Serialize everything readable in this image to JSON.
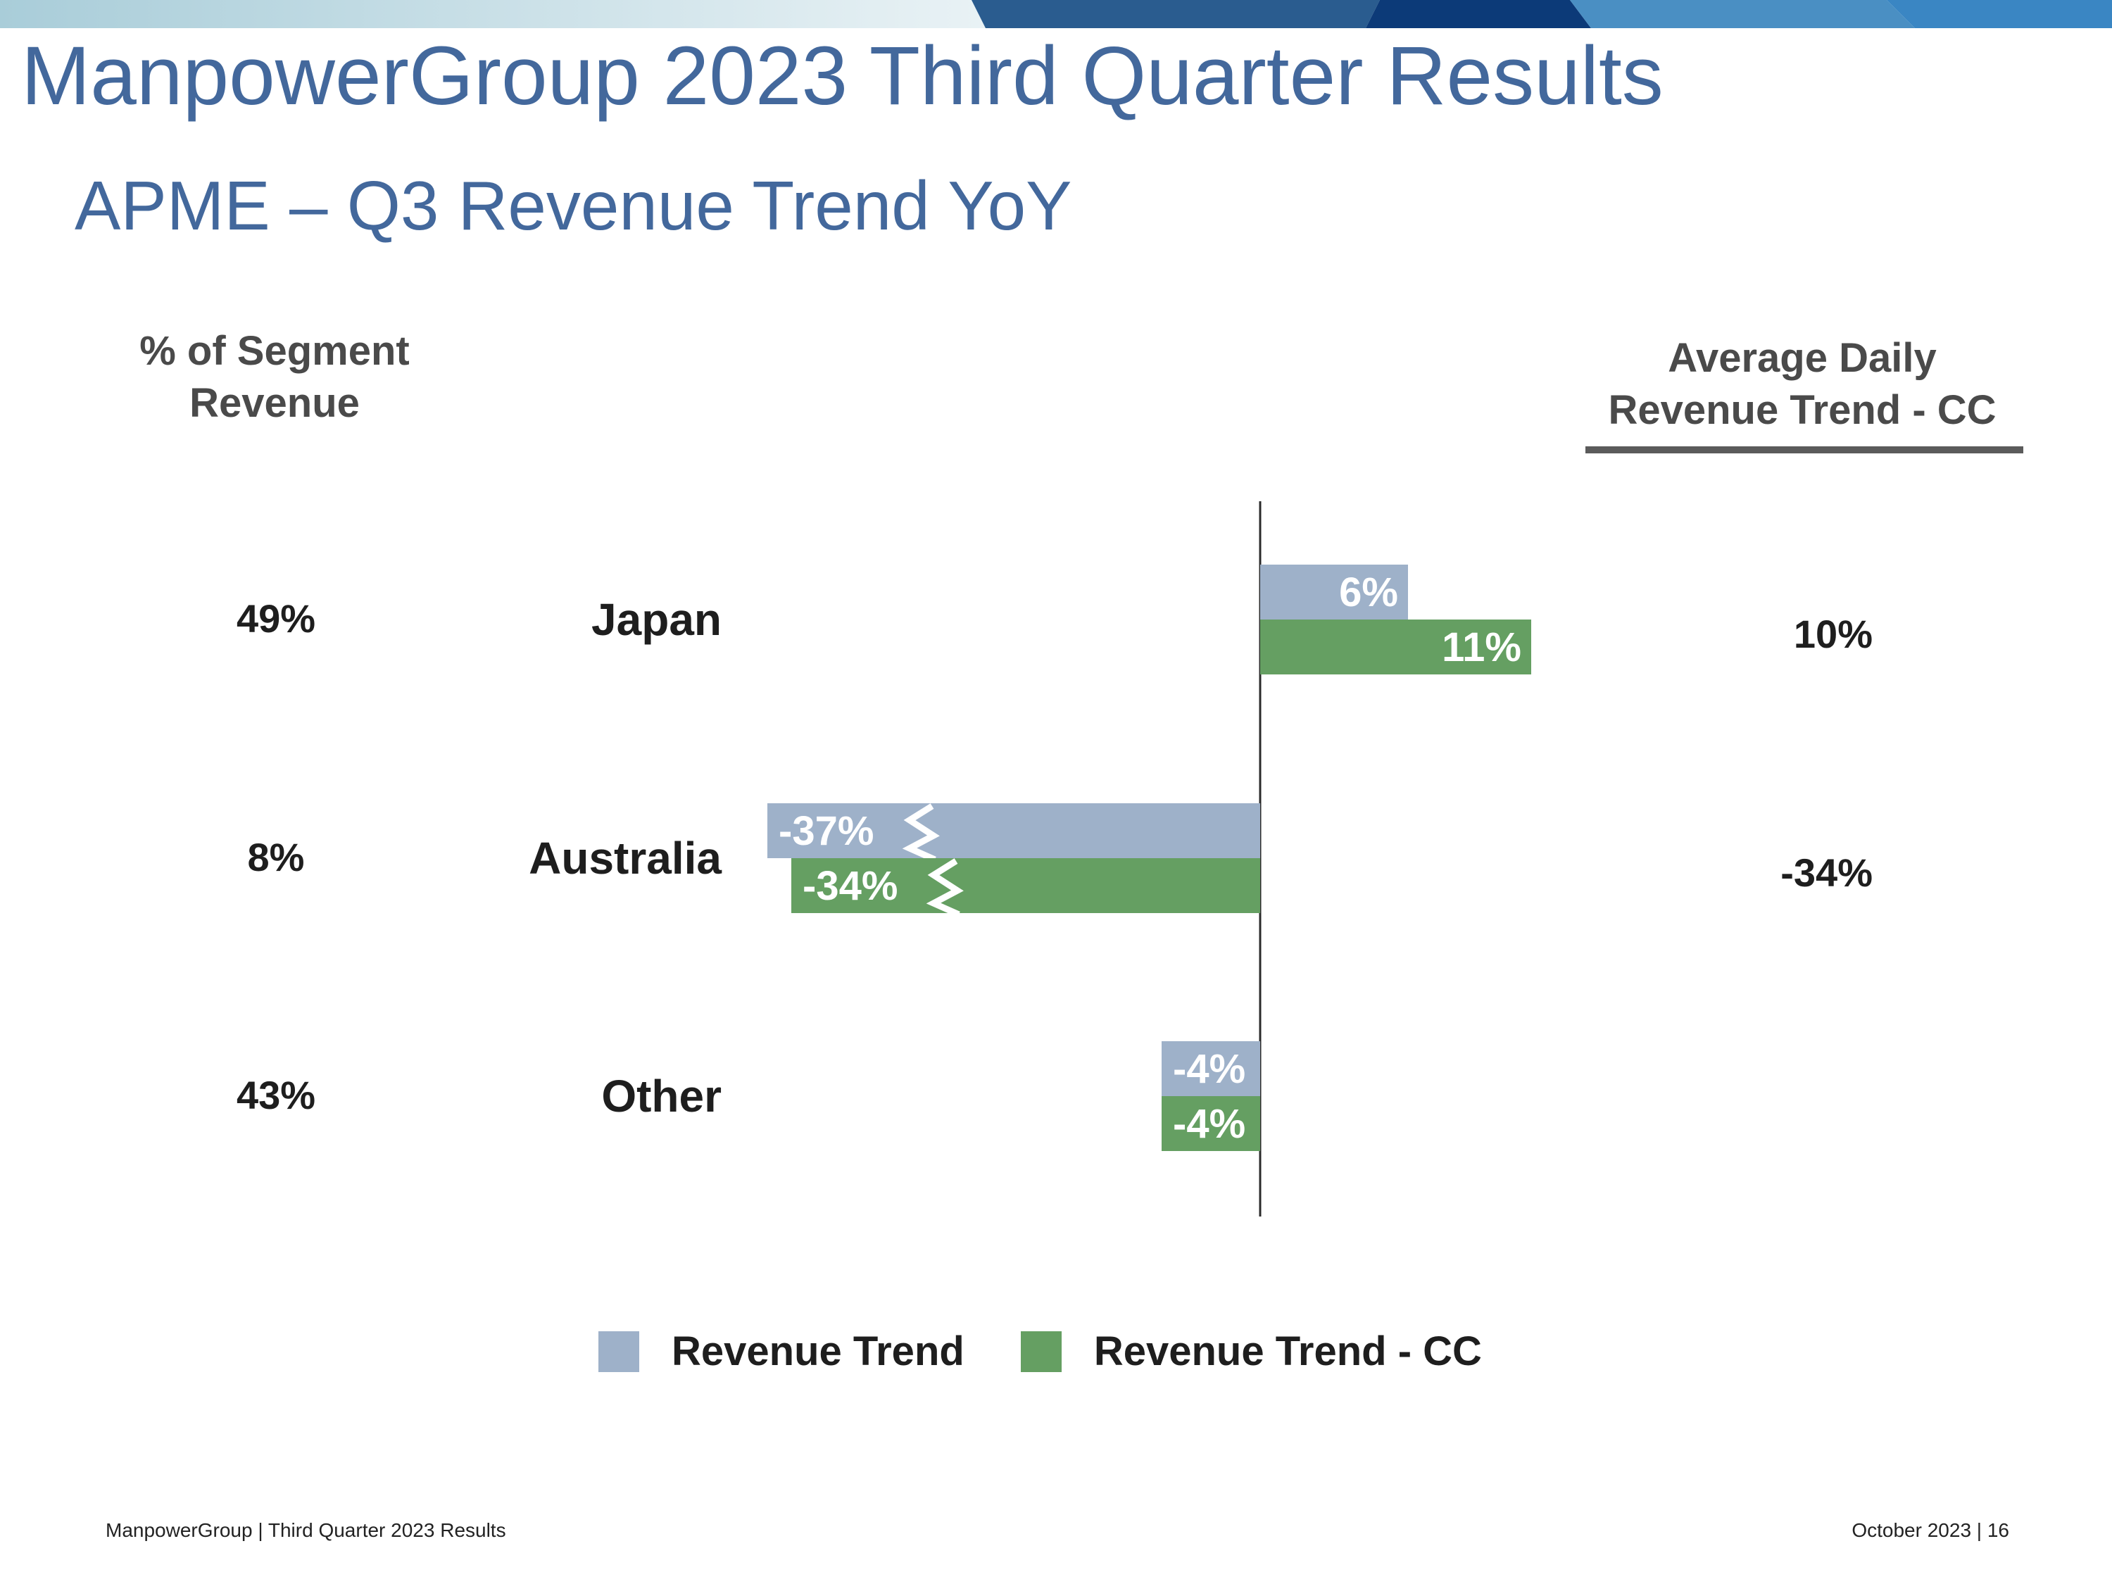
{
  "header": {
    "title": "ManpowerGroup 2023 Third Quarter Results",
    "subtitle": "APME – Q3 Revenue Trend YoY"
  },
  "columns": {
    "segment_header_line1": "% of Segment",
    "segment_header_line2": "Revenue",
    "adr_header_line1": "Average Daily",
    "adr_header_line2": "Revenue Trend - CC"
  },
  "colors": {
    "revenue_trend": "#9eb1c9",
    "revenue_trend_cc": "#659f62",
    "title": "#43689c"
  },
  "chart_data": {
    "type": "bar",
    "orientation": "horizontal",
    "categories": [
      "Japan",
      "Australia",
      "Other"
    ],
    "series": [
      {
        "name": "Revenue Trend",
        "values": [
          6,
          -37,
          -4
        ],
        "labels": [
          "6%",
          "-37%",
          "-4%"
        ]
      },
      {
        "name": "Revenue Trend - CC",
        "values": [
          11,
          -34,
          -4
        ],
        "labels": [
          "11%",
          "-34%",
          "-4%"
        ]
      }
    ],
    "segment_revenue_share": [
      "49%",
      "8%",
      "43%"
    ],
    "average_daily_revenue_trend_cc": [
      "10%",
      "-34%",
      ""
    ],
    "axis_break_on": [
      "Australia"
    ],
    "unit": "%",
    "legend_position": "bottom"
  },
  "legend": {
    "items": [
      {
        "label": "Revenue Trend",
        "color": "#9eb1c9"
      },
      {
        "label": "Revenue Trend - CC",
        "color": "#659f62"
      }
    ]
  },
  "footer": {
    "left": "ManpowerGroup  |  Third Quarter 2023 Results",
    "right": "October 2023   |   16"
  }
}
